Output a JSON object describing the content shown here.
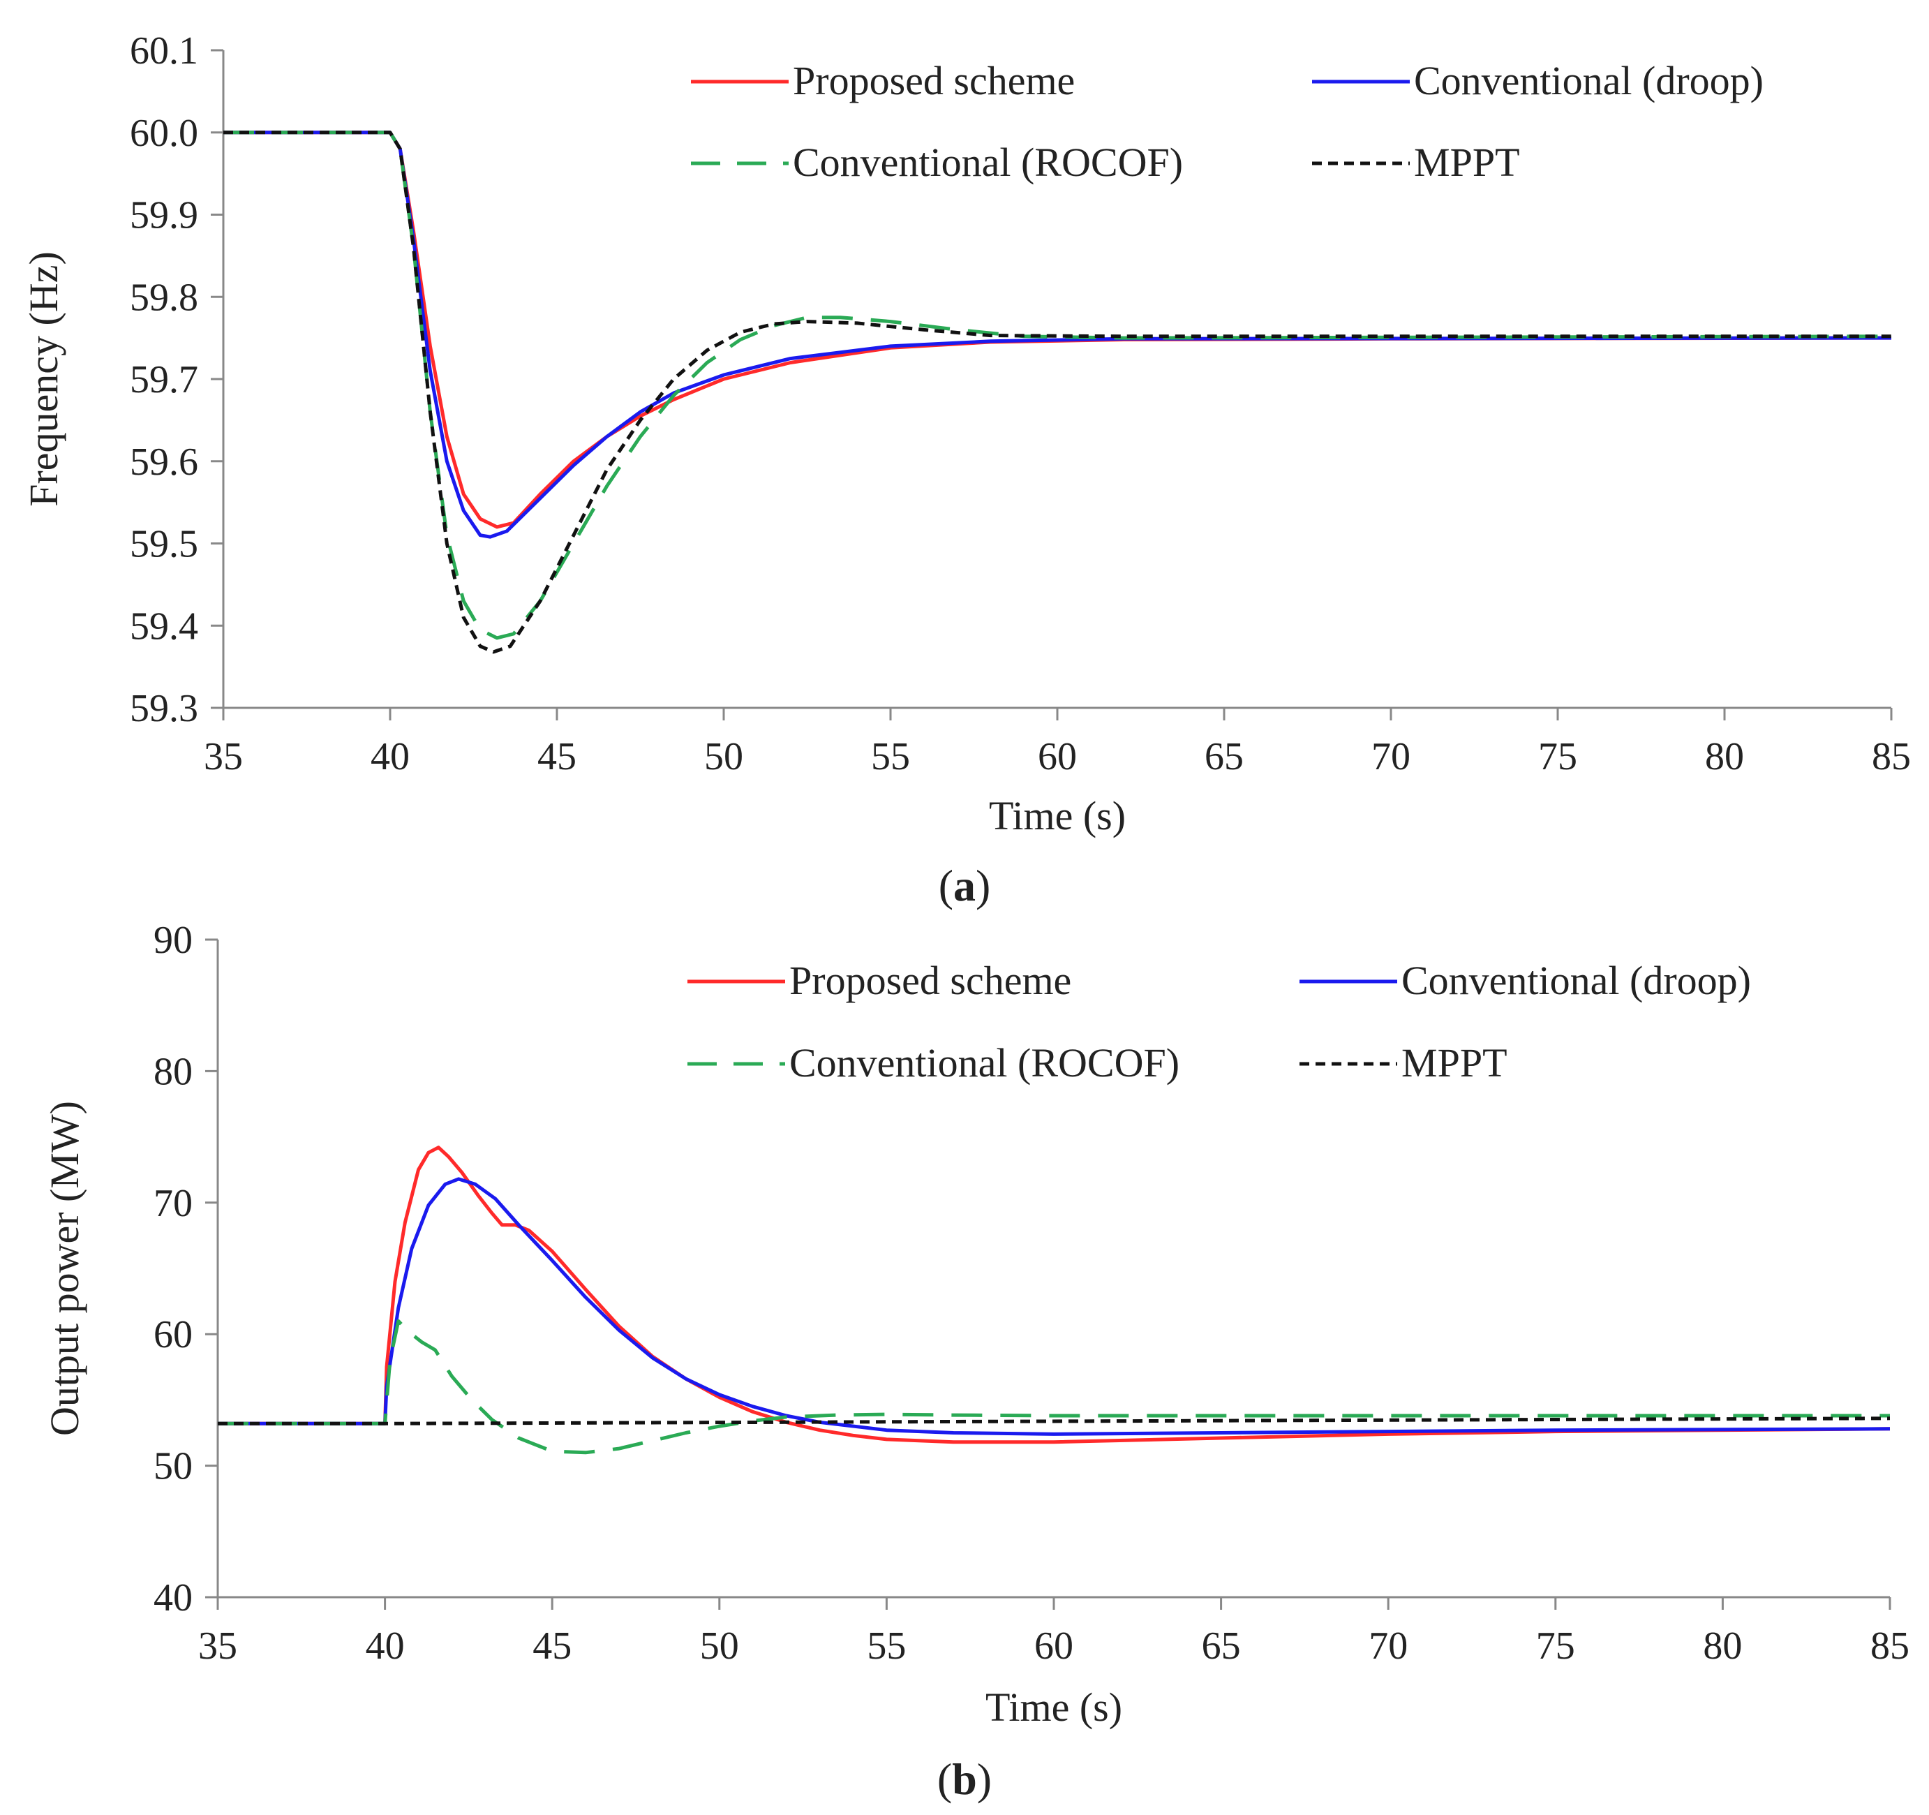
{
  "chart_data": [
    {
      "type": "line",
      "panel_label": "a",
      "xlabel": "Time (s)",
      "ylabel": "Frequency (Hz)",
      "xlim": [
        35,
        85
      ],
      "ylim": [
        59.3,
        60.1
      ],
      "xticks": [
        35,
        40,
        45,
        50,
        55,
        60,
        65,
        70,
        75,
        80,
        85
      ],
      "yticks": [
        59.3,
        59.4,
        59.5,
        59.6,
        59.7,
        59.8,
        59.9,
        60.0,
        60.1
      ],
      "ytick_decimals": 1,
      "legend": [
        "Proposed scheme",
        "Conventional (droop)",
        "Conventional (ROCOF)",
        "MPPT"
      ],
      "series": [
        {
          "name": "Proposed scheme",
          "color": "#ff2a2a",
          "dash": "solid",
          "points": [
            [
              35,
              60.0
            ],
            [
              40,
              60.0
            ],
            [
              40.3,
              59.98
            ],
            [
              40.7,
              59.88
            ],
            [
              41.2,
              59.74
            ],
            [
              41.7,
              59.63
            ],
            [
              42.2,
              59.56
            ],
            [
              42.7,
              59.53
            ],
            [
              43.2,
              59.52
            ],
            [
              43.7,
              59.525
            ],
            [
              44.5,
              59.56
            ],
            [
              45.5,
              59.6
            ],
            [
              46.5,
              59.63
            ],
            [
              47.5,
              59.655
            ],
            [
              48.5,
              59.675
            ],
            [
              50,
              59.7
            ],
            [
              52,
              59.72
            ],
            [
              55,
              59.738
            ],
            [
              58,
              59.745
            ],
            [
              62,
              59.748
            ],
            [
              70,
              59.749
            ],
            [
              85,
              59.75
            ]
          ]
        },
        {
          "name": "Conventional (droop)",
          "color": "#1a1aee",
          "dash": "solid",
          "points": [
            [
              35,
              60.0
            ],
            [
              40,
              60.0
            ],
            [
              40.3,
              59.98
            ],
            [
              40.7,
              59.87
            ],
            [
              41.2,
              59.71
            ],
            [
              41.7,
              59.6
            ],
            [
              42.2,
              59.54
            ],
            [
              42.7,
              59.51
            ],
            [
              43.0,
              59.508
            ],
            [
              43.5,
              59.515
            ],
            [
              44.5,
              59.555
            ],
            [
              45.5,
              59.595
            ],
            [
              46.5,
              59.63
            ],
            [
              47.5,
              59.66
            ],
            [
              48.5,
              59.683
            ],
            [
              50,
              59.705
            ],
            [
              52,
              59.725
            ],
            [
              55,
              59.74
            ],
            [
              58,
              59.746
            ],
            [
              62,
              59.749
            ],
            [
              85,
              59.75
            ]
          ]
        },
        {
          "name": "Conventional (ROCOF)",
          "color": "#2aaa55",
          "dash": "long",
          "points": [
            [
              35,
              60.0
            ],
            [
              40,
              60.0
            ],
            [
              40.3,
              59.98
            ],
            [
              40.7,
              59.86
            ],
            [
              41.2,
              59.66
            ],
            [
              41.7,
              59.51
            ],
            [
              42.2,
              59.43
            ],
            [
              42.7,
              59.395
            ],
            [
              43.2,
              59.385
            ],
            [
              43.7,
              59.39
            ],
            [
              44.5,
              59.43
            ],
            [
              45.5,
              59.5
            ],
            [
              46.5,
              59.57
            ],
            [
              47.5,
              59.63
            ],
            [
              48.5,
              59.68
            ],
            [
              49.5,
              59.72
            ],
            [
              50.5,
              59.748
            ],
            [
              51.5,
              59.765
            ],
            [
              52.5,
              59.775
            ],
            [
              53.5,
              59.775
            ],
            [
              55,
              59.77
            ],
            [
              57,
              59.76
            ],
            [
              59,
              59.752
            ],
            [
              62,
              59.75
            ],
            [
              85,
              59.752
            ]
          ]
        },
        {
          "name": "MPPT",
          "color": "#111111",
          "dash": "short",
          "points": [
            [
              35,
              60.0
            ],
            [
              40,
              60.0
            ],
            [
              40.3,
              59.98
            ],
            [
              40.7,
              59.86
            ],
            [
              41.2,
              59.66
            ],
            [
              41.7,
              59.5
            ],
            [
              42.2,
              59.41
            ],
            [
              42.7,
              59.375
            ],
            [
              43.1,
              59.368
            ],
            [
              43.6,
              59.375
            ],
            [
              44.5,
              59.43
            ],
            [
              45.5,
              59.51
            ],
            [
              46.5,
              59.59
            ],
            [
              47.5,
              59.65
            ],
            [
              48.5,
              59.7
            ],
            [
              49.5,
              59.735
            ],
            [
              50.5,
              59.757
            ],
            [
              51.5,
              59.767
            ],
            [
              52.5,
              59.77
            ],
            [
              54,
              59.768
            ],
            [
              56,
              59.76
            ],
            [
              58,
              59.753
            ],
            [
              62,
              59.752
            ],
            [
              85,
              59.752
            ]
          ]
        }
      ]
    },
    {
      "type": "line",
      "panel_label": "b",
      "xlabel": "Time (s)",
      "ylabel": "Output power (MW)",
      "xlim": [
        35,
        85
      ],
      "ylim": [
        40,
        90
      ],
      "xticks": [
        35,
        40,
        45,
        50,
        55,
        60,
        65,
        70,
        75,
        80,
        85
      ],
      "yticks": [
        40,
        50,
        60,
        70,
        80,
        90
      ],
      "ytick_decimals": 0,
      "legend": [
        "Proposed scheme",
        "Conventional (droop)",
        "Conventional (ROCOF)",
        "MPPT"
      ],
      "series": [
        {
          "name": "Proposed scheme",
          "color": "#ff2a2a",
          "dash": "solid",
          "points": [
            [
              35,
              53.2
            ],
            [
              40,
              53.2
            ],
            [
              40.05,
              57.5
            ],
            [
              40.3,
              64
            ],
            [
              40.6,
              68.5
            ],
            [
              41.0,
              72.5
            ],
            [
              41.3,
              73.8
            ],
            [
              41.6,
              74.2
            ],
            [
              41.9,
              73.5
            ],
            [
              42.3,
              72.3
            ],
            [
              42.8,
              70.5
            ],
            [
              43.2,
              69.2
            ],
            [
              43.5,
              68.3
            ],
            [
              43.9,
              68.3
            ],
            [
              44.3,
              67.9
            ],
            [
              45,
              66.3
            ],
            [
              46,
              63.4
            ],
            [
              47,
              60.6
            ],
            [
              48,
              58.3
            ],
            [
              49,
              56.6
            ],
            [
              50,
              55.2
            ],
            [
              51,
              54.1
            ],
            [
              52,
              53.3
            ],
            [
              53,
              52.7
            ],
            [
              54,
              52.3
            ],
            [
              55,
              52.0
            ],
            [
              57,
              51.8
            ],
            [
              60,
              51.8
            ],
            [
              65,
              52.1
            ],
            [
              70,
              52.4
            ],
            [
              75,
              52.6
            ],
            [
              85,
              52.8
            ]
          ]
        },
        {
          "name": "Conventional (droop)",
          "color": "#1a1aee",
          "dash": "solid",
          "points": [
            [
              35,
              53.2
            ],
            [
              40,
              53.2
            ],
            [
              40.05,
              56
            ],
            [
              40.4,
              62
            ],
            [
              40.8,
              66.5
            ],
            [
              41.3,
              69.8
            ],
            [
              41.8,
              71.4
            ],
            [
              42.2,
              71.8
            ],
            [
              42.7,
              71.4
            ],
            [
              43.3,
              70.3
            ],
            [
              44,
              68.3
            ],
            [
              45,
              65.6
            ],
            [
              46,
              62.8
            ],
            [
              47,
              60.3
            ],
            [
              48,
              58.2
            ],
            [
              49,
              56.6
            ],
            [
              50,
              55.4
            ],
            [
              51,
              54.5
            ],
            [
              52,
              53.8
            ],
            [
              53,
              53.3
            ],
            [
              55,
              52.7
            ],
            [
              57,
              52.5
            ],
            [
              60,
              52.4
            ],
            [
              65,
              52.5
            ],
            [
              70,
              52.6
            ],
            [
              75,
              52.7
            ],
            [
              85,
              52.8
            ]
          ]
        },
        {
          "name": "Conventional (ROCOF)",
          "color": "#2aaa55",
          "dash": "long",
          "points": [
            [
              35,
              53.2
            ],
            [
              40,
              53.2
            ],
            [
              40.15,
              58
            ],
            [
              40.4,
              61
            ],
            [
              40.7,
              60.2
            ],
            [
              41.1,
              59.4
            ],
            [
              41.5,
              58.8
            ],
            [
              42,
              56.8
            ],
            [
              42.6,
              55
            ],
            [
              43.2,
              53.5
            ],
            [
              44,
              52.1
            ],
            [
              45,
              51.1
            ],
            [
              46,
              51.0
            ],
            [
              47,
              51.3
            ],
            [
              48,
              51.9
            ],
            [
              49,
              52.5
            ],
            [
              50,
              53.0
            ],
            [
              51,
              53.4
            ],
            [
              52,
              53.7
            ],
            [
              53.5,
              53.85
            ],
            [
              55,
              53.9
            ],
            [
              57,
              53.85
            ],
            [
              60,
              53.8
            ],
            [
              85,
              53.8
            ]
          ]
        },
        {
          "name": "MPPT",
          "color": "#111111",
          "dash": "short",
          "points": [
            [
              35,
              53.2
            ],
            [
              40,
              53.2
            ],
            [
              85,
              53.6
            ]
          ]
        }
      ]
    }
  ],
  "captions": [
    "(a)",
    "(b)"
  ]
}
